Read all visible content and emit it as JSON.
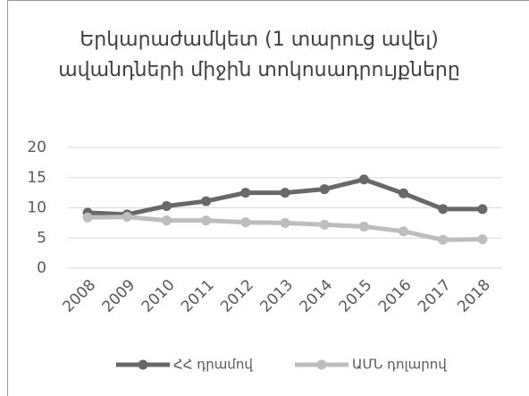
{
  "chart_data": {
    "type": "line",
    "title": "Երկարաժամկետ (1 տարուց ավել) ավանդների միջին տոկոսադրույքները",
    "categories": [
      "2008",
      "2009",
      "2010",
      "2011",
      "2012",
      "2013",
      "2014",
      "2015",
      "2016",
      "2017",
      "2018"
    ],
    "series": [
      {
        "name": "ՀՀ դրամով",
        "color": "#686868",
        "values": [
          9.2,
          8.9,
          10.3,
          11.1,
          12.5,
          12.5,
          13.1,
          14.7,
          12.4,
          9.8,
          9.8
        ]
      },
      {
        "name": "ԱՄՆ դոլարով",
        "color": "#bdbdbd",
        "values": [
          8.4,
          8.5,
          7.9,
          7.9,
          7.6,
          7.5,
          7.2,
          6.9,
          6.1,
          4.7,
          4.8
        ]
      }
    ],
    "ylim": [
      0,
      20
    ],
    "yticks": [
      0,
      5,
      10,
      15,
      20
    ],
    "grid": true,
    "legend": "bottom"
  }
}
